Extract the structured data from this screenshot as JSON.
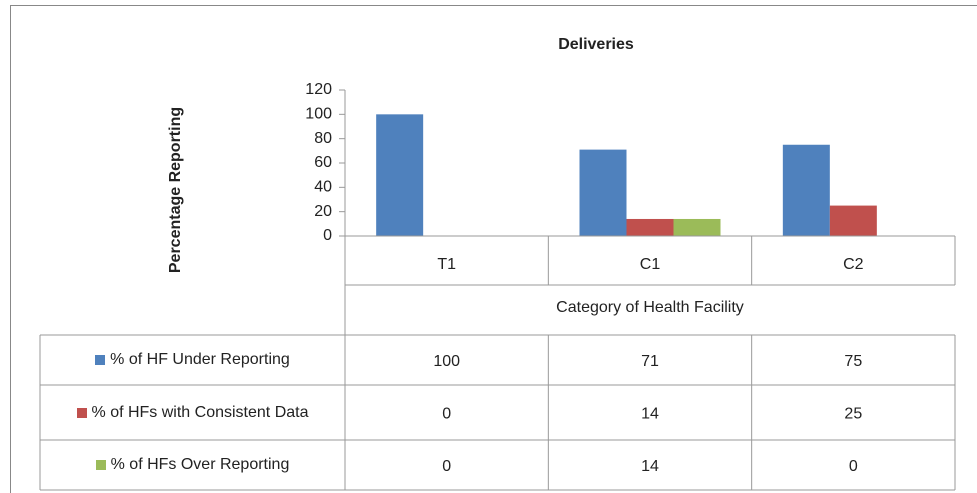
{
  "chart_data": {
    "type": "bar",
    "title": "Deliveries",
    "ylabel": "Percentage Reporting",
    "xlabel": "Category of Health Facility",
    "categories": [
      "T1",
      "C1",
      "C2"
    ],
    "series": [
      {
        "name": "% of HF Under Reporting",
        "color": "#4f81bd",
        "values": [
          100,
          71,
          75
        ]
      },
      {
        "name": "% of HFs with Consistent Data",
        "color": "#c0504d",
        "values": [
          0,
          14,
          25
        ]
      },
      {
        "name": "% of HFs Over Reporting",
        "color": "#9bbb59",
        "values": [
          0,
          14,
          0
        ]
      }
    ],
    "ylim": [
      0,
      120
    ],
    "yticks": [
      0,
      20,
      40,
      60,
      80,
      100,
      120
    ],
    "grid": false,
    "data_table": true
  }
}
